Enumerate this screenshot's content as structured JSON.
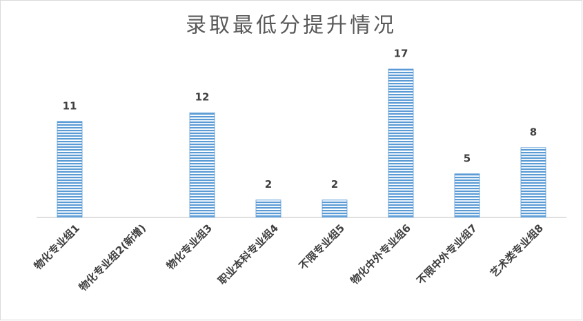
{
  "chart_data": {
    "type": "bar",
    "title": "录取最低分提升情况",
    "categories": [
      "物化专业组1",
      "物化专业组2(新增)",
      "物化专业组3",
      "职业本科专业组4",
      "不限专业组5",
      "物化中外专业组6",
      "不限中外专业组7",
      "艺术类专业组8"
    ],
    "values": [
      11,
      null,
      12,
      2,
      2,
      17,
      5,
      8
    ],
    "color": "#5b9bd5"
  }
}
